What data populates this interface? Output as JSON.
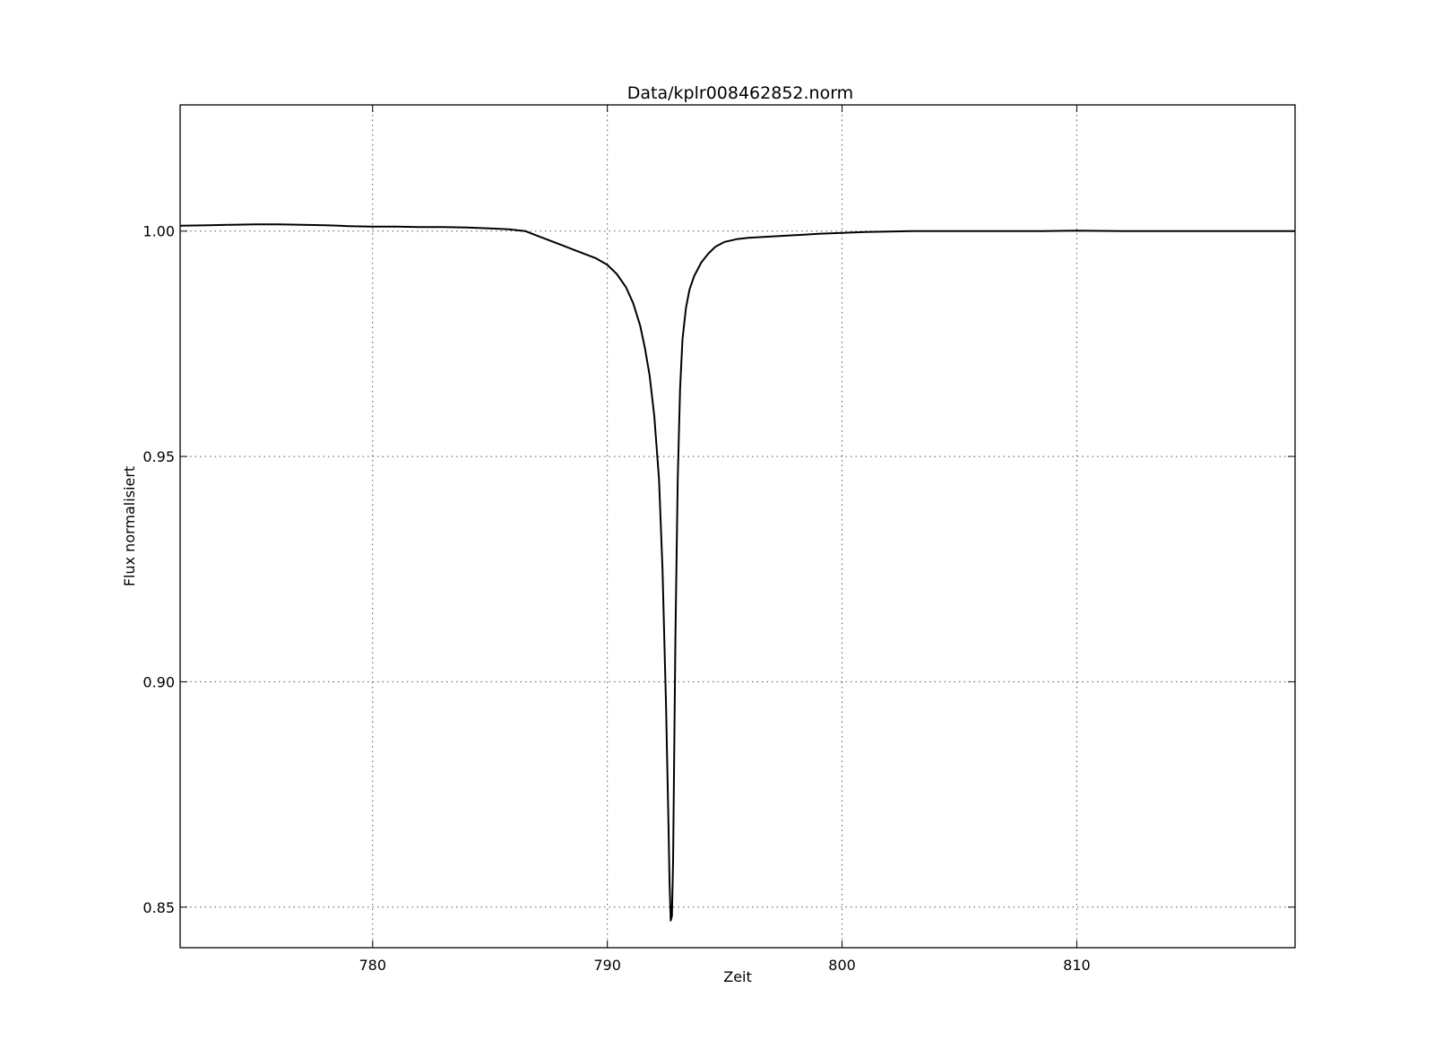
{
  "chart_data": {
    "type": "line",
    "title": "Data/kplr008462852.norm",
    "xlabel": "Zeit",
    "ylabel": "Flux normalisiert",
    "xlim": [
      771.8,
      819.3
    ],
    "ylim": [
      0.841,
      1.028
    ],
    "grid": true,
    "line_color": "#000000",
    "grid_color": "#555555",
    "x_ticks": [
      {
        "value": 780,
        "label": "780"
      },
      {
        "value": 790,
        "label": "790"
      },
      {
        "value": 800,
        "label": "800"
      },
      {
        "value": 810,
        "label": "810"
      }
    ],
    "y_ticks": [
      {
        "value": 0.85,
        "label": "0.85"
      },
      {
        "value": 0.9,
        "label": "0.90"
      },
      {
        "value": 0.95,
        "label": "0.95"
      },
      {
        "value": 1.0,
        "label": "1.00"
      }
    ],
    "series": [
      {
        "x": [
          771.8,
          773.0,
          774.0,
          775.0,
          776.0,
          777.0,
          778.0,
          779.0,
          780.0,
          781.0,
          782.0,
          783.0,
          784.0,
          785.0,
          785.8,
          786.5,
          787.0,
          787.5,
          788.0,
          788.5,
          789.0,
          789.5,
          790.0,
          790.4,
          790.8,
          791.1,
          791.4,
          791.6,
          791.8,
          792.0,
          792.2,
          792.35,
          792.5,
          792.6,
          792.65,
          792.7,
          792.75,
          792.8,
          792.85,
          792.9,
          793.0,
          793.1,
          793.2,
          793.35,
          793.5,
          793.7,
          794.0,
          794.3,
          794.6,
          795.0,
          795.5,
          796.0,
          797.0,
          798.0,
          799.0,
          800.0,
          801.0,
          802.0,
          803.0,
          805.0,
          807.0,
          808.5,
          810.0,
          812.0,
          814.0,
          816.0,
          817.5,
          819.3
        ],
        "y": [
          1.0012,
          1.0013,
          1.0014,
          1.0015,
          1.0015,
          1.0014,
          1.0013,
          1.0011,
          1.001,
          1.001,
          1.0009,
          1.0009,
          1.0008,
          1.0006,
          1.0004,
          1.0,
          0.999,
          0.998,
          0.997,
          0.996,
          0.995,
          0.994,
          0.9925,
          0.9905,
          0.9875,
          0.984,
          0.979,
          0.974,
          0.968,
          0.959,
          0.945,
          0.925,
          0.895,
          0.87,
          0.855,
          0.847,
          0.848,
          0.86,
          0.885,
          0.91,
          0.945,
          0.965,
          0.976,
          0.983,
          0.987,
          0.99,
          0.993,
          0.995,
          0.9965,
          0.9976,
          0.9982,
          0.9985,
          0.9988,
          0.9991,
          0.9994,
          0.9996,
          0.9998,
          0.9999,
          1.0,
          1.0,
          1.0,
          1.0,
          1.0001,
          1.0,
          1.0,
          1.0,
          1.0,
          1.0
        ]
      }
    ]
  }
}
